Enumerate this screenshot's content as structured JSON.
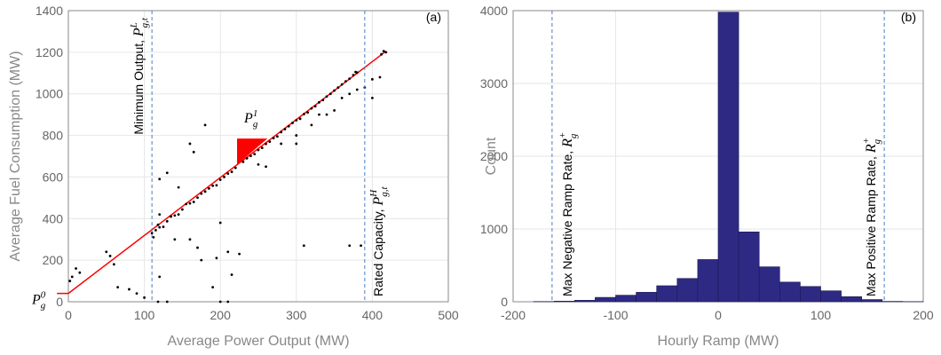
{
  "chart_data": [
    {
      "type": "scatter",
      "panel_label": "(a)",
      "xlabel": "Average Power Output (MW)",
      "ylabel": "Average Fuel Consumption (MW)",
      "xlim": [
        0,
        500
      ],
      "ylim": [
        0,
        1400
      ],
      "xticks": [
        0,
        100,
        200,
        300,
        400,
        500
      ],
      "yticks": [
        0,
        200,
        400,
        600,
        800,
        1000,
        1200,
        1400
      ],
      "grid": true,
      "color": "#000000",
      "x": [
        110,
        115,
        120,
        130,
        140,
        150,
        160,
        170,
        180,
        190,
        200,
        210,
        220,
        230,
        240,
        250,
        260,
        270,
        280,
        290,
        300,
        310,
        320,
        330,
        340,
        350,
        360,
        370,
        380,
        112,
        118,
        125,
        135,
        145,
        155,
        165,
        175,
        185,
        195,
        205,
        215,
        235,
        245,
        255,
        265,
        275,
        285,
        295,
        305,
        315,
        325,
        335,
        345,
        355,
        365,
        375,
        378,
        300,
        320,
        340,
        350,
        360,
        370,
        380,
        390,
        400,
        410,
        400,
        330,
        280,
        250,
        300,
        260,
        160,
        165,
        180,
        130,
        120,
        145,
        200,
        215,
        190,
        175,
        195,
        100,
        90,
        80,
        60,
        65,
        50,
        55,
        10,
        5,
        15,
        2,
        120,
        310,
        370,
        385,
        140,
        160,
        170,
        210,
        225,
        118,
        130,
        200,
        210,
        120,
        415,
        418,
        412
      ],
      "values": [
        330,
        344,
        358,
        387,
        415,
        444,
        473,
        501,
        530,
        558,
        587,
        616,
        644,
        673,
        701,
        730,
        759,
        787,
        816,
        844,
        873,
        902,
        930,
        959,
        987,
        1016,
        1045,
        1073,
        1102,
        310,
        370,
        360,
        410,
        420,
        470,
        480,
        520,
        545,
        560,
        600,
        625,
        690,
        710,
        740,
        770,
        795,
        830,
        860,
        880,
        910,
        940,
        970,
        1000,
        1030,
        1060,
        1090,
        1105,
        800,
        850,
        900,
        920,
        980,
        1000,
        1020,
        1030,
        1070,
        1080,
        980,
        900,
        760,
        660,
        760,
        650,
        760,
        720,
        850,
        620,
        590,
        550,
        380,
        130,
        70,
        200,
        210,
        20,
        40,
        60,
        180,
        70,
        240,
        220,
        160,
        120,
        140,
        100,
        420,
        270,
        270,
        270,
        300,
        300,
        260,
        240,
        230,
        0,
        0,
        0,
        0,
        120,
        1205,
        1200,
        1190
      ],
      "line": {
        "color": "#ff0000",
        "x": [
          -15,
          0,
          418
        ],
        "values": [
          40,
          40,
          1205
        ]
      },
      "shape": {
        "color": "#ff0000",
        "x": [
          222,
          262,
          222
        ],
        "y": [
          785,
          785,
          660
        ]
      },
      "shape_label": {
        "base": "P",
        "sub": "g",
        "sup": "1"
      },
      "origin_label": {
        "base": "P",
        "sub": "g",
        "sup": "0"
      },
      "vlines": [
        110,
        390
      ],
      "vline_labels": [
        {
          "text": "Minimum Output, ",
          "base": "P",
          "sub": "g,t",
          "sup": "L"
        },
        {
          "text": "Rated Capacity, ",
          "base": "P",
          "sub": "g,t",
          "sup": "H"
        }
      ]
    },
    {
      "type": "histogram",
      "panel_label": "(b)",
      "xlabel": "Hourly Ramp (MW)",
      "ylabel": "Count",
      "xlim": [
        -200,
        200
      ],
      "ylim": [
        0,
        4000
      ],
      "xticks": [
        -200,
        -100,
        0,
        100,
        200
      ],
      "yticks": [
        0,
        1000,
        2000,
        3000,
        4000
      ],
      "grid": true,
      "color": "#2e2a84",
      "bins": [
        -180,
        -160,
        -140,
        -120,
        -100,
        -80,
        -60,
        -40,
        -20,
        0,
        20,
        40,
        60,
        80,
        100,
        120,
        140,
        160,
        180,
        200
      ],
      "counts": [
        3,
        8,
        20,
        60,
        90,
        130,
        220,
        320,
        580,
        3980,
        960,
        480,
        270,
        210,
        150,
        70,
        30,
        5,
        2
      ],
      "vlines": [
        -162,
        162
      ],
      "vline_labels": [
        {
          "text": "Max Negative Ramp Rate, ",
          "base": "R",
          "sub": "g",
          "sup": "+"
        },
        {
          "text": "Max Positive Ramp Rate, ",
          "base": "R",
          "sub": "g",
          "sup": "+"
        }
      ]
    }
  ]
}
